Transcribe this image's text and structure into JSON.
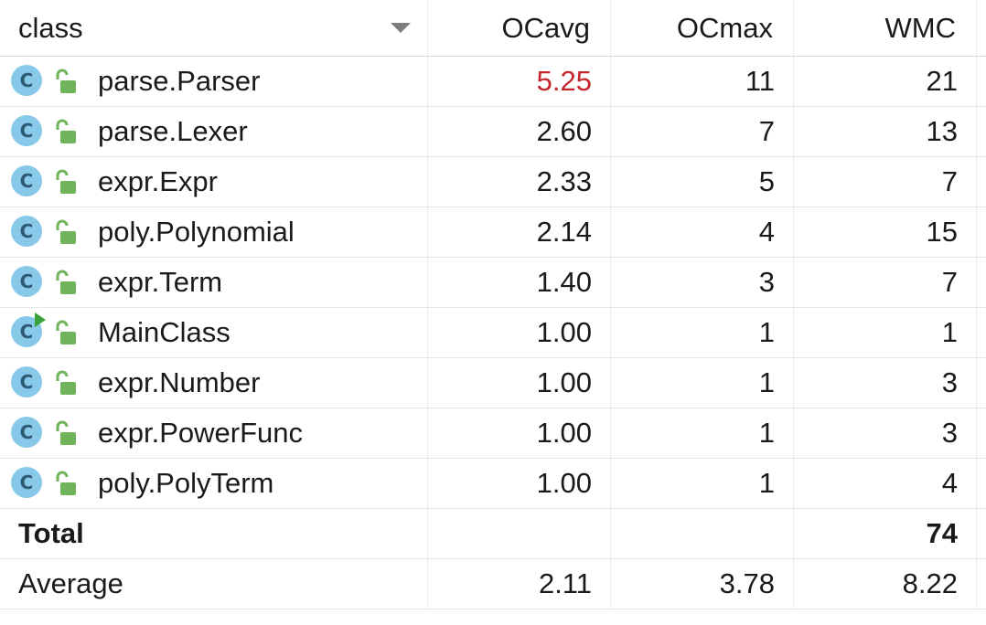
{
  "columns": {
    "class": "class",
    "ocavg": "OCavg",
    "ocmax": "OCmax",
    "wmc": "WMC"
  },
  "icons": {
    "class_icon_letter": "C",
    "class_icon_color": "#88c9ea",
    "lock_color": "#6fb35a",
    "run_marker_color": "#3aa23a",
    "highlight_color": "#c4262e"
  },
  "rows": [
    {
      "name": "parse.Parser",
      "ocavg": "5.25",
      "ocmax": "11",
      "wmc": "21"
    },
    {
      "name": "parse.Lexer",
      "ocavg": "2.60",
      "ocmax": "7",
      "wmc": "13"
    },
    {
      "name": "expr.Expr",
      "ocavg": "2.33",
      "ocmax": "5",
      "wmc": "7"
    },
    {
      "name": "poly.Polynomial",
      "ocavg": "2.14",
      "ocmax": "4",
      "wmc": "15"
    },
    {
      "name": "expr.Term",
      "ocavg": "1.40",
      "ocmax": "3",
      "wmc": "7"
    },
    {
      "name": "MainClass",
      "ocavg": "1.00",
      "ocmax": "1",
      "wmc": "1"
    },
    {
      "name": "expr.Number",
      "ocavg": "1.00",
      "ocmax": "1",
      "wmc": "3"
    },
    {
      "name": "expr.PowerFunc",
      "ocavg": "1.00",
      "ocmax": "1",
      "wmc": "3"
    },
    {
      "name": "poly.PolyTerm",
      "ocavg": "1.00",
      "ocmax": "1",
      "wmc": "4"
    }
  ],
  "total": {
    "label": "Total",
    "ocavg": "",
    "ocmax": "",
    "wmc": "74"
  },
  "average": {
    "label": "Average",
    "ocavg": "2.11",
    "ocmax": "3.78",
    "wmc": "8.22"
  }
}
